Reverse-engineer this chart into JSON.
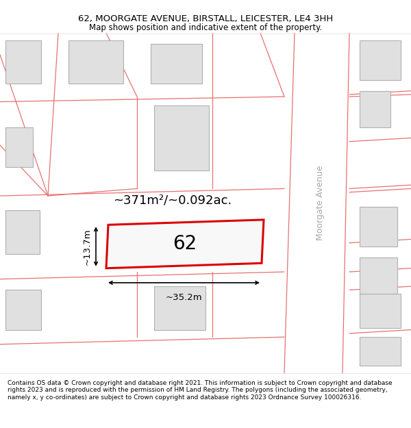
{
  "title_line1": "62, MOORGATE AVENUE, BIRSTALL, LEICESTER, LE4 3HH",
  "title_line2": "Map shows position and indicative extent of the property.",
  "footer_text": "Contains OS data © Crown copyright and database right 2021. This information is subject to Crown copyright and database rights 2023 and is reproduced with the permission of HM Land Registry. The polygons (including the associated geometry, namely x, y co-ordinates) are subject to Crown copyright and database rights 2023 Ordnance Survey 100026316.",
  "area_label": "~371m²/~0.092ac.",
  "number_label": "62",
  "width_label": "~35.2m",
  "height_label": "~13.7m",
  "street_label": "Moorgate Avenue",
  "background_color": "#ffffff",
  "map_bg_color": "#f8f8f8",
  "building_fill": "#e0e0e0",
  "building_edge": "#b0b0b0",
  "road_line_color": "#e87070",
  "highlight_rect_color": "#dd0000",
  "dim_line_color": "#000000",
  "title_fontsize": 9.5,
  "subtitle_fontsize": 8.5,
  "footer_fontsize": 6.5,
  "area_fontsize": 13,
  "number_fontsize": 20,
  "street_fontsize": 9,
  "dim_fontsize": 9.5
}
